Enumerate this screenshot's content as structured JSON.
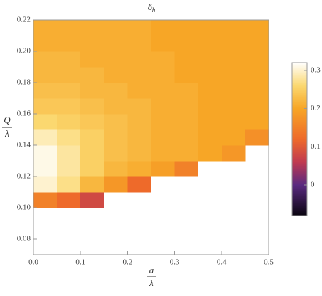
{
  "chart_data": {
    "type": "heatmap",
    "title": {
      "symbol": "δ",
      "subscript": "h"
    },
    "xlabel": {
      "numerator": "a",
      "denominator": "λ"
    },
    "ylabel": {
      "numerator": "Q",
      "denominator": "λ"
    },
    "x": [
      0.025,
      0.075,
      0.125,
      0.175,
      0.225,
      0.275,
      0.325,
      0.375,
      0.425,
      0.475
    ],
    "y": [
      0.075,
      0.085,
      0.095,
      0.105,
      0.115,
      0.125,
      0.135,
      0.145,
      0.155,
      0.165,
      0.175,
      0.185,
      0.195,
      0.205,
      0.215
    ],
    "values": [
      [
        null,
        null,
        null,
        null,
        null,
        null,
        null,
        null,
        null,
        null
      ],
      [
        null,
        null,
        null,
        null,
        null,
        null,
        null,
        null,
        null,
        null
      ],
      [
        null,
        null,
        null,
        null,
        null,
        null,
        null,
        null,
        null,
        null
      ],
      [
        0.15,
        0.12,
        0.08,
        null,
        null,
        null,
        null,
        null,
        null,
        null
      ],
      [
        0.3,
        0.27,
        0.22,
        0.18,
        0.12,
        null,
        null,
        null,
        null,
        null
      ],
      [
        0.31,
        0.28,
        0.25,
        0.22,
        0.21,
        0.19,
        0.15,
        null,
        null,
        null
      ],
      [
        0.31,
        0.28,
        0.25,
        0.23,
        0.22,
        0.21,
        0.21,
        0.2,
        0.18,
        null
      ],
      [
        0.29,
        0.27,
        0.25,
        0.23,
        0.22,
        0.21,
        0.21,
        0.2,
        0.2,
        0.17
      ],
      [
        0.26,
        0.25,
        0.24,
        0.23,
        0.22,
        0.21,
        0.21,
        0.2,
        0.2,
        0.2
      ],
      [
        0.24,
        0.24,
        0.23,
        0.22,
        0.22,
        0.21,
        0.21,
        0.2,
        0.2,
        0.2
      ],
      [
        0.23,
        0.23,
        0.22,
        0.22,
        0.21,
        0.21,
        0.21,
        0.2,
        0.2,
        0.2
      ],
      [
        0.22,
        0.22,
        0.22,
        0.21,
        0.21,
        0.21,
        0.2,
        0.2,
        0.2,
        0.2
      ],
      [
        0.22,
        0.22,
        0.21,
        0.21,
        0.21,
        0.21,
        0.2,
        0.2,
        0.2,
        0.2
      ],
      [
        0.21,
        0.21,
        0.21,
        0.21,
        0.21,
        0.2,
        0.2,
        0.2,
        0.2,
        0.2
      ],
      [
        0.21,
        0.21,
        0.21,
        0.21,
        0.21,
        0.2,
        0.2,
        0.2,
        0.2,
        0.2
      ]
    ],
    "xlim": [
      0,
      0.5
    ],
    "ylim": [
      0.07,
      0.22
    ],
    "xticks": [
      {
        "value": 0,
        "label": "0.0"
      },
      0.1,
      0.2,
      0.3,
      0.4,
      0.5
    ],
    "yticks": [
      0.08,
      {
        "value": 0.1,
        "label": "0.10"
      },
      0.12,
      0.14,
      0.16,
      0.18,
      {
        "value": 0.2,
        "label": "0.20"
      },
      0.22
    ],
    "clim": [
      -0.08,
      0.32
    ],
    "cticks": [
      0,
      0.1,
      0.2,
      0.3
    ]
  }
}
